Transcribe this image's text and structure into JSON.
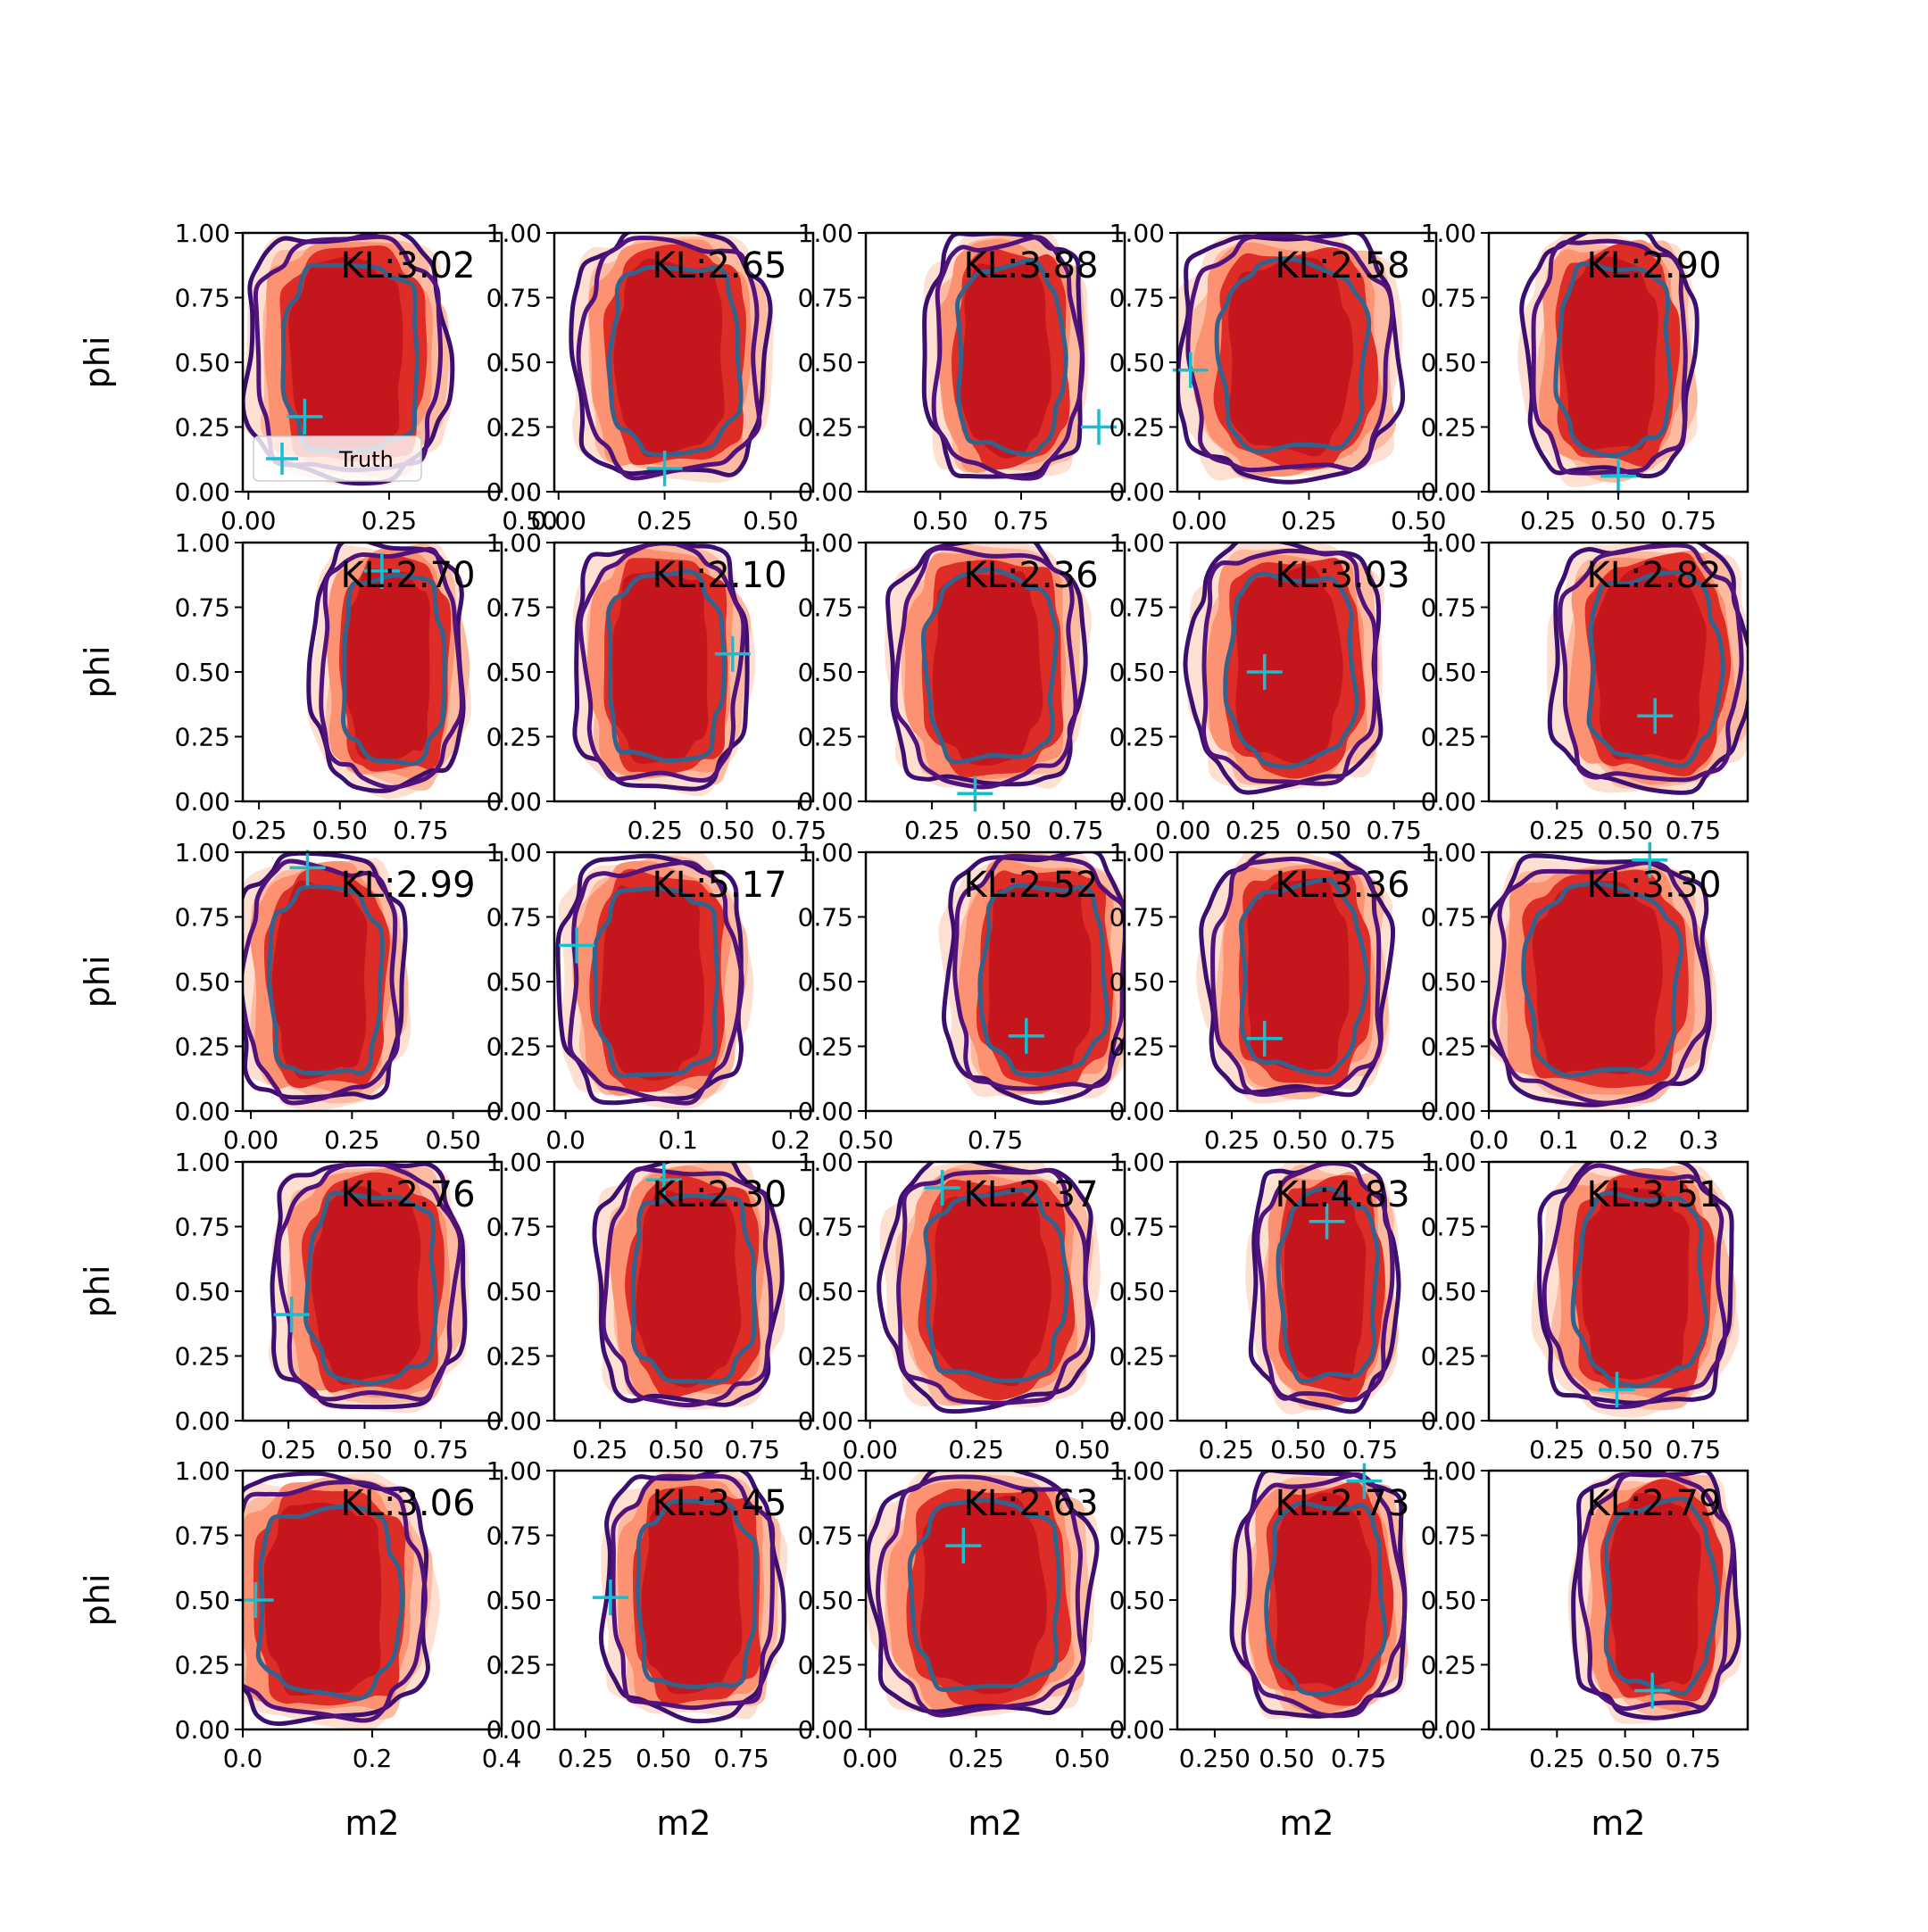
{
  "chart_data": {
    "type": "contour",
    "layout": {
      "rows": 5,
      "cols": 5
    },
    "xlabel": "m2",
    "ylabel": "phi",
    "ylim": [
      0,
      1
    ],
    "yticks": [
      "0.00",
      "0.25",
      "0.50",
      "0.75",
      "1.00"
    ],
    "legend": {
      "label": "Truth",
      "placement": "lower-left",
      "panel": 0
    },
    "colors": {
      "fill_levels": [
        "#fee0d2",
        "#fcbba1",
        "#fc9272",
        "#de2d26",
        "#c4161c"
      ],
      "outer_contour": "#3b0f70",
      "outer_contour_2": "#51127c",
      "inner_contour": "#33638d",
      "truth": "#17becf"
    },
    "panels": [
      {
        "kl": "KL:3.02",
        "xlim": [
          -0.01,
          0.45
        ],
        "xticks": [
          0,
          0.25,
          0.5
        ],
        "xtick_labels": [
          "0.00",
          "0.25",
          "0.50"
        ],
        "truth": [
          0.1,
          0.29
        ],
        "center": [
          0.18,
          0.53
        ],
        "width": 0.33
      },
      {
        "kl": "KL:2.65",
        "xlim": [
          -0.01,
          0.6
        ],
        "xticks": [
          0,
          0.25,
          0.5
        ],
        "xtick_labels": [
          "0.00",
          "0.25",
          "0.50"
        ],
        "truth": [
          0.25,
          0.09
        ],
        "center": [
          0.27,
          0.53
        ],
        "width": 0.42
      },
      {
        "kl": "KL:3.88",
        "xlim": [
          0.27,
          1.07
        ],
        "xticks": [
          0.5,
          0.75
        ],
        "xtick_labels": [
          "0.50",
          "0.75"
        ],
        "truth": [
          0.99,
          0.25
        ],
        "center": [
          0.71,
          0.53
        ],
        "width": 0.45
      },
      {
        "kl": "KL:2.58",
        "xlim": [
          -0.05,
          0.54
        ],
        "xticks": [
          0,
          0.25,
          0.5
        ],
        "xtick_labels": [
          "0.00",
          "0.25",
          "0.50"
        ],
        "truth": [
          -0.02,
          0.47
        ],
        "center": [
          0.21,
          0.53
        ],
        "width": 0.46
      },
      {
        "kl": "KL:2.90",
        "xlim": [
          0.04,
          0.96
        ],
        "xticks": [
          0.25,
          0.5,
          0.75
        ],
        "xtick_labels": [
          "0.25",
          "0.50",
          "0.75"
        ],
        "truth": [
          0.5,
          0.06
        ],
        "center": [
          0.48,
          0.53
        ],
        "width": 0.55
      },
      {
        "kl": "KL:2.70",
        "xlim": [
          0.2,
          1.0
        ],
        "xticks": [
          0.25,
          0.5,
          0.75
        ],
        "xtick_labels": [
          "0.25",
          "0.50",
          "0.75"
        ],
        "truth": [
          0.63,
          0.89
        ],
        "center": [
          0.66,
          0.53
        ],
        "width": 0.43
      },
      {
        "kl": "KL:2.10",
        "xlim": [
          -0.1,
          0.8
        ],
        "xticks": [
          0.25,
          0.5,
          0.75
        ],
        "xtick_labels": [
          "0.25",
          "0.50",
          "0.75"
        ],
        "truth": [
          0.52,
          0.57
        ],
        "center": [
          0.28,
          0.53
        ],
        "width": 0.55
      },
      {
        "kl": "KL:2.36",
        "xlim": [
          0.02,
          0.92
        ],
        "xticks": [
          0.25,
          0.5,
          0.75
        ],
        "xtick_labels": [
          "0.25",
          "0.50",
          "0.75"
        ],
        "truth": [
          0.4,
          0.03
        ],
        "center": [
          0.45,
          0.53
        ],
        "width": 0.62
      },
      {
        "kl": "KL:3.03",
        "xlim": [
          -0.02,
          0.9
        ],
        "xticks": [
          0,
          0.25,
          0.5,
          0.75
        ],
        "xtick_labels": [
          "0.00",
          "0.25",
          "0.50",
          "0.75"
        ],
        "truth": [
          0.29,
          0.5
        ],
        "center": [
          0.38,
          0.53
        ],
        "width": 0.62
      },
      {
        "kl": "KL:2.82",
        "xlim": [
          0.0,
          0.95
        ],
        "xticks": [
          0.25,
          0.5,
          0.75
        ],
        "xtick_labels": [
          "0.25",
          "0.50",
          "0.75"
        ],
        "truth": [
          0.61,
          0.33
        ],
        "center": [
          0.6,
          0.53
        ],
        "width": 0.66
      },
      {
        "kl": "KL:2.99",
        "xlim": [
          -0.02,
          0.62
        ],
        "xticks": [
          0,
          0.25,
          0.5
        ],
        "xtick_labels": [
          "0.00",
          "0.25",
          "0.50"
        ],
        "truth": [
          0.14,
          0.94
        ],
        "center": [
          0.18,
          0.51
        ],
        "width": 0.38
      },
      {
        "kl": "KL:5.17",
        "xlim": [
          -0.01,
          0.22
        ],
        "xticks": [
          0,
          0.1,
          0.2
        ],
        "xtick_labels": [
          "0.0",
          "0.1",
          "0.2"
        ],
        "truth": [
          0.01,
          0.64
        ],
        "center": [
          0.08,
          0.51
        ],
        "width": 0.15
      },
      {
        "kl": "KL:2.52",
        "xlim": [
          0.5,
          1.0
        ],
        "xticks": [
          0.5,
          0.75
        ],
        "xtick_labels": [
          "0.50",
          "0.75"
        ],
        "truth": [
          0.81,
          0.29
        ],
        "center": [
          0.84,
          0.53
        ],
        "width": 0.33
      },
      {
        "kl": "KL:3.36",
        "xlim": [
          0.05,
          1.0
        ],
        "xticks": [
          0.25,
          0.5,
          0.75
        ],
        "xtick_labels": [
          "0.25",
          "0.50",
          "0.75"
        ],
        "truth": [
          0.37,
          0.28
        ],
        "center": [
          0.5,
          0.53
        ],
        "width": 0.62
      },
      {
        "kl": "KL:3.30",
        "xlim": [
          0.0,
          0.37
        ],
        "xticks": [
          0,
          0.1,
          0.2,
          0.3
        ],
        "xtick_labels": [
          "0.0",
          "0.1",
          "0.2",
          "0.3"
        ],
        "truth": [
          0.23,
          0.97
        ],
        "center": [
          0.16,
          0.51
        ],
        "width": 0.3
      },
      {
        "kl": "KL:2.76",
        "xlim": [
          0.1,
          0.95
        ],
        "xticks": [
          0.25,
          0.5,
          0.75
        ],
        "xtick_labels": [
          "0.25",
          "0.50",
          "0.75"
        ],
        "truth": [
          0.26,
          0.41
        ],
        "center": [
          0.52,
          0.53
        ],
        "width": 0.58
      },
      {
        "kl": "KL:2.30",
        "xlim": [
          0.1,
          0.95
        ],
        "xticks": [
          0.25,
          0.5,
          0.75
        ],
        "xtick_labels": [
          "0.25",
          "0.50",
          "0.75"
        ],
        "truth": [
          0.46,
          0.93
        ],
        "center": [
          0.55,
          0.53
        ],
        "width": 0.55
      },
      {
        "kl": "KL:2.37",
        "xlim": [
          -0.01,
          0.6
        ],
        "xticks": [
          0,
          0.25,
          0.5
        ],
        "xtick_labels": [
          "0.00",
          "0.25",
          "0.50"
        ],
        "truth": [
          0.17,
          0.9
        ],
        "center": [
          0.29,
          0.53
        ],
        "width": 0.45
      },
      {
        "kl": "KL:4.83",
        "xlim": [
          0.08,
          0.98
        ],
        "xticks": [
          0.25,
          0.5,
          0.75
        ],
        "xtick_labels": [
          "0.25",
          "0.50",
          "0.75"
        ],
        "truth": [
          0.6,
          0.77
        ],
        "center": [
          0.6,
          0.53
        ],
        "width": 0.46
      },
      {
        "kl": "KL:3.51",
        "xlim": [
          0.0,
          0.95
        ],
        "xticks": [
          0.25,
          0.5,
          0.75
        ],
        "xtick_labels": [
          "0.25",
          "0.50",
          "0.75"
        ],
        "truth": [
          0.47,
          0.12
        ],
        "center": [
          0.55,
          0.53
        ],
        "width": 0.65
      },
      {
        "kl": "KL:3.06",
        "xlim": [
          0.0,
          0.4
        ],
        "xticks": [
          0,
          0.2,
          0.4
        ],
        "xtick_labels": [
          "0.0",
          "0.2",
          "0.4"
        ],
        "truth": [
          0.02,
          0.5
        ],
        "center": [
          0.13,
          0.51
        ],
        "width": 0.3
      },
      {
        "kl": "KL:3.45",
        "xlim": [
          0.15,
          0.98
        ],
        "xticks": [
          0.25,
          0.5,
          0.75
        ],
        "xtick_labels": [
          "0.25",
          "0.50",
          "0.75"
        ],
        "truth": [
          0.33,
          0.51
        ],
        "center": [
          0.6,
          0.53
        ],
        "width": 0.52
      },
      {
        "kl": "KL:2.63",
        "xlim": [
          -0.01,
          0.6
        ],
        "xticks": [
          0,
          0.25,
          0.5
        ],
        "xtick_labels": [
          "0.00",
          "0.25",
          "0.50"
        ],
        "truth": [
          0.22,
          0.71
        ],
        "center": [
          0.27,
          0.53
        ],
        "width": 0.48
      },
      {
        "kl": "KL:2.73",
        "xlim": [
          0.12,
          1.02
        ],
        "xticks": [
          0.25,
          0.5,
          0.75
        ],
        "xtick_labels": [
          "0.250",
          "0.50",
          "0.75"
        ],
        "truth": [
          0.77,
          0.96
        ],
        "center": [
          0.63,
          0.53
        ],
        "width": 0.55
      },
      {
        "kl": "KL:2.79",
        "xlim": [
          0.0,
          0.95
        ],
        "xticks": [
          0.25,
          0.5,
          0.75
        ],
        "xtick_labels": [
          "0.25",
          "0.50",
          "0.75"
        ],
        "truth": [
          0.6,
          0.15
        ],
        "center": [
          0.62,
          0.53
        ],
        "width": 0.55
      }
    ]
  }
}
